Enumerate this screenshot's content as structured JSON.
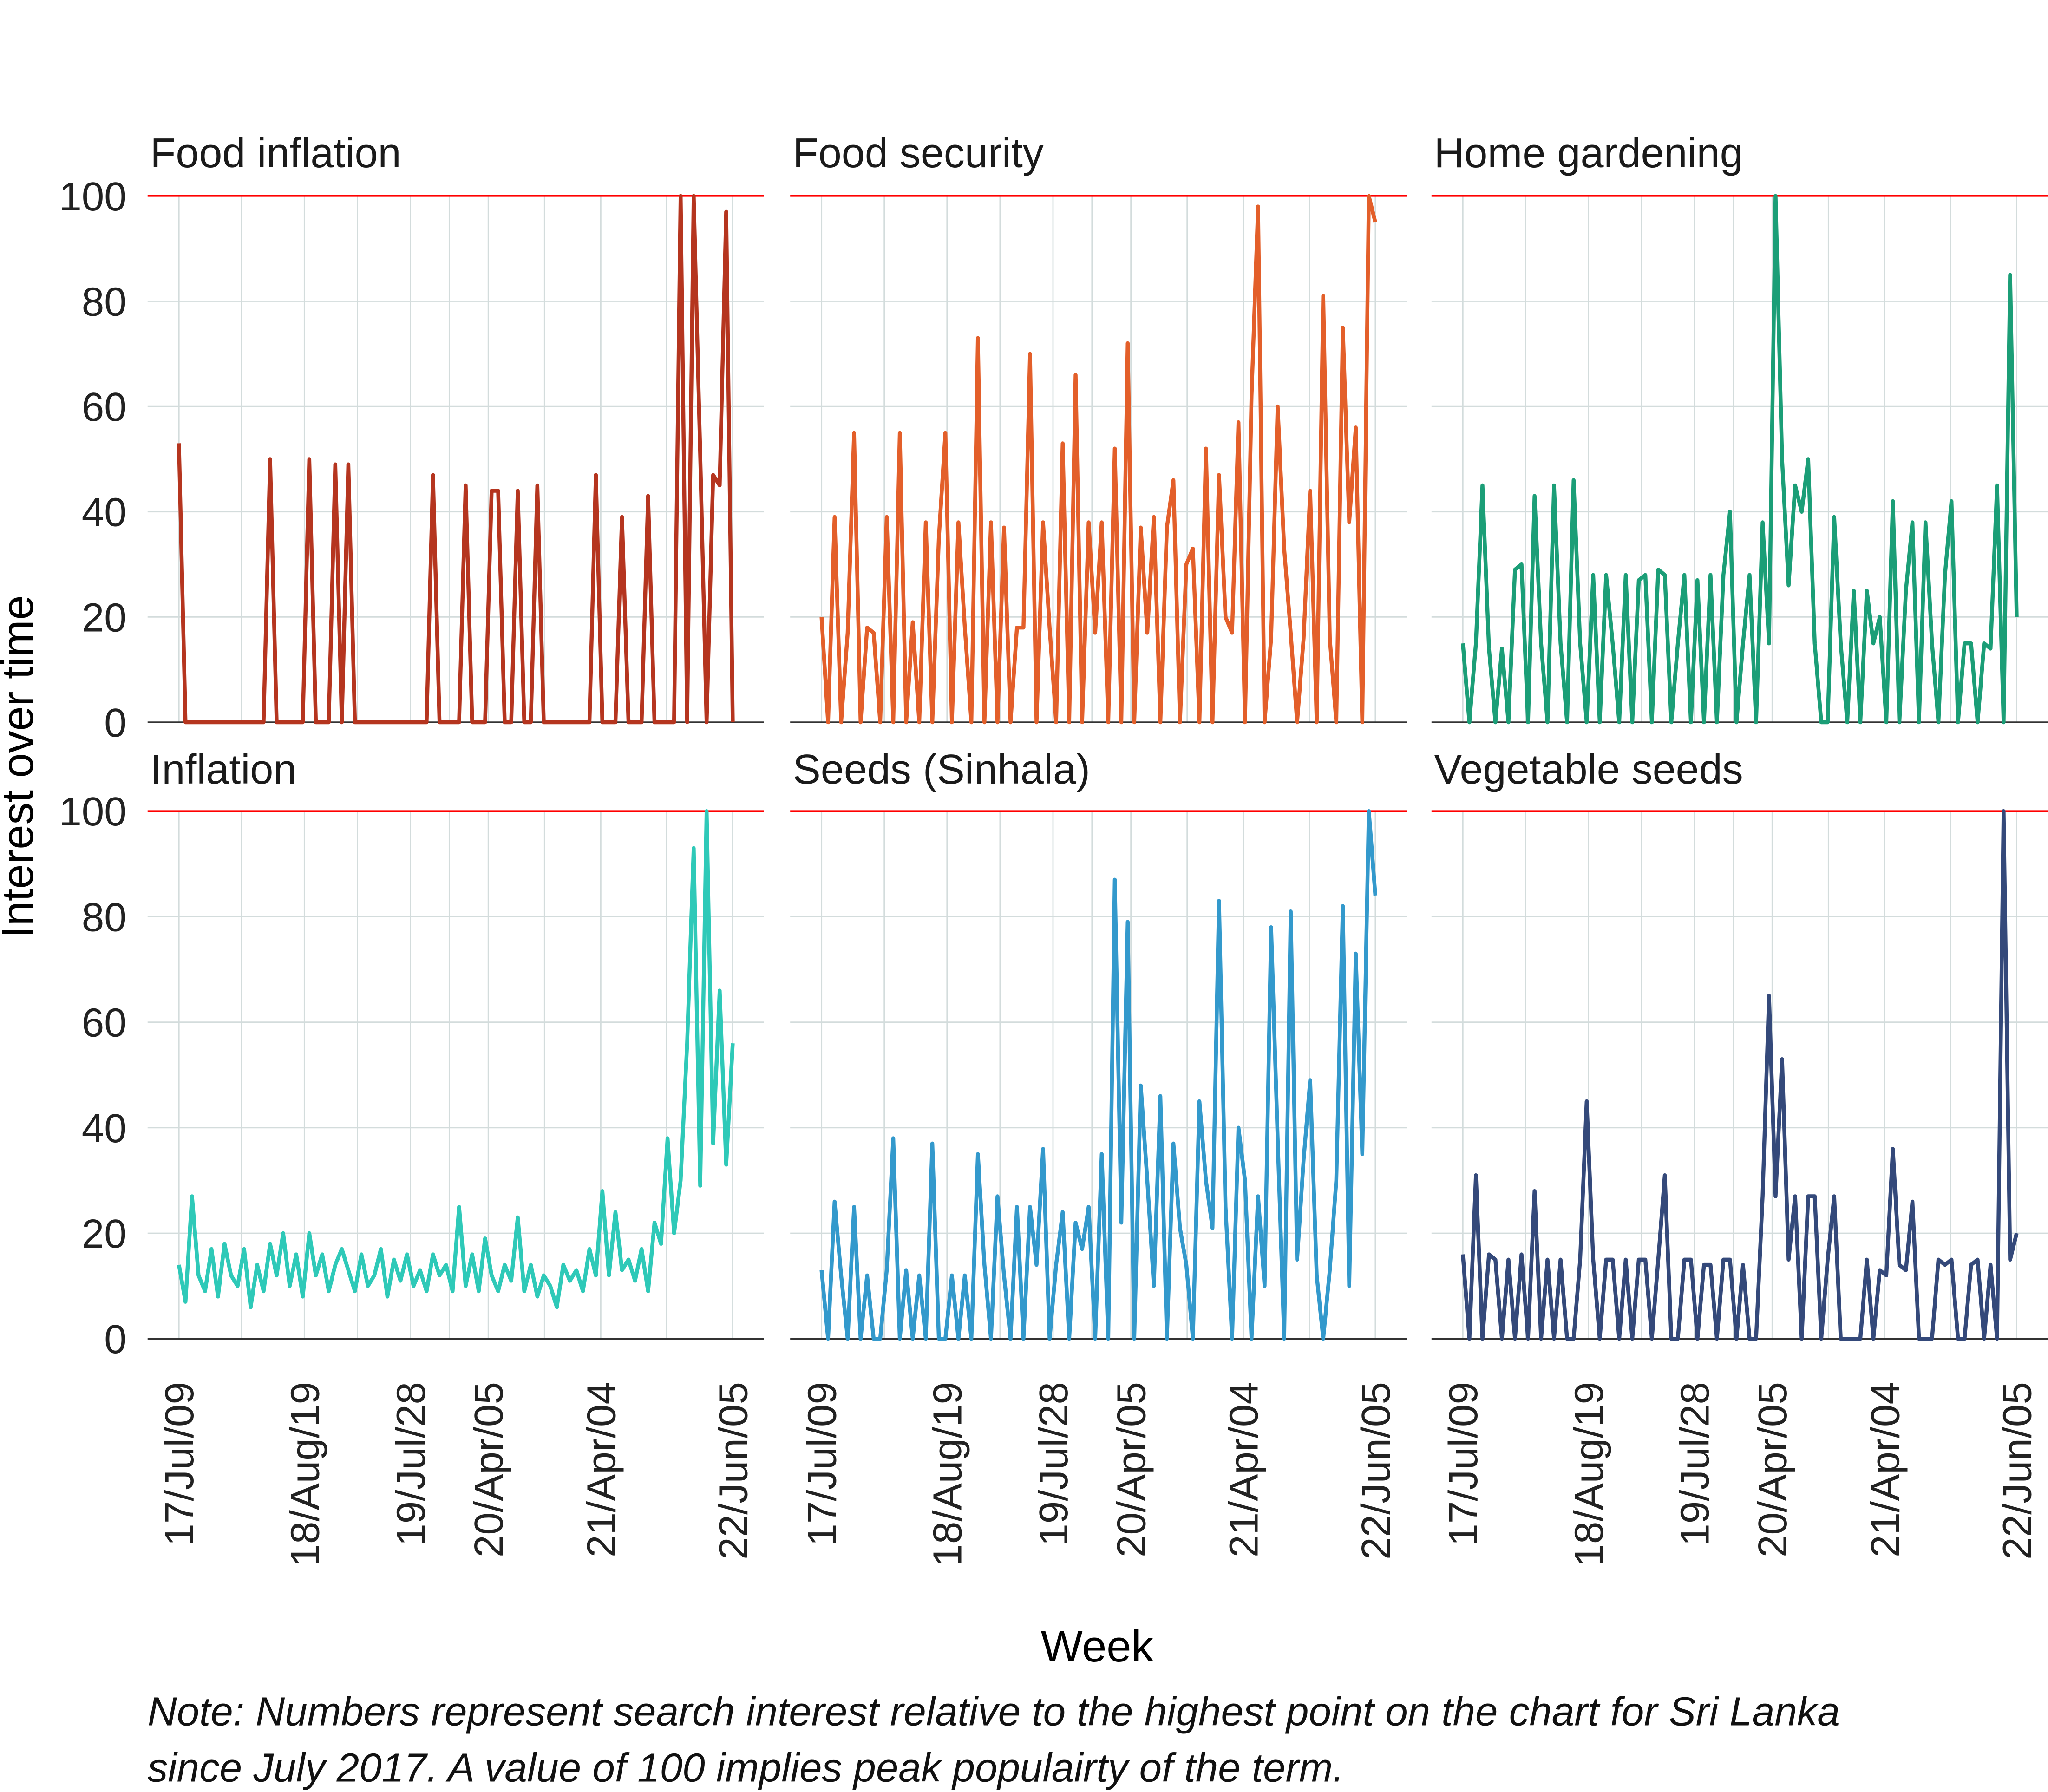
{
  "chart_data": {
    "type": "line",
    "layout": "facet 2x3",
    "xlabel": "Week",
    "ylabel": "Interest over time",
    "ylim": [
      0,
      100
    ],
    "y_ticks": [
      0,
      20,
      40,
      60,
      80,
      100
    ],
    "x_range": [
      "2017-07-09",
      "2022-06-05"
    ],
    "x_ticks": [
      {
        "date": "2017-07-09",
        "label": "17/Jul/09"
      },
      {
        "date": "2018-08-19",
        "label": "18/Aug/19"
      },
      {
        "date": "2019-07-28",
        "label": "19/Jul/28"
      },
      {
        "date": "2020-04-05",
        "label": "20/Apr/05"
      },
      {
        "date": "2021-04-04",
        "label": "21/Apr/04"
      },
      {
        "date": "2022-06-05",
        "label": "22/Jun/05"
      }
    ],
    "grid": true,
    "reference_line": {
      "value": 100,
      "color": "#FF0000"
    },
    "note": [
      "Note: Numbers represent search interest relative to the highest point on the chart for Sri Lanka",
      "since July 2017. A value of 100 implies peak populairty of the term."
    ],
    "series": [
      {
        "name": "Food inflation",
        "color": "#B5351F",
        "values": [
          53,
          0,
          0,
          0,
          0,
          0,
          0,
          0,
          0,
          0,
          0,
          0,
          0,
          0,
          50,
          0,
          0,
          0,
          0,
          0,
          50,
          0,
          0,
          0,
          49,
          0,
          49,
          0,
          0,
          0,
          0,
          0,
          0,
          0,
          0,
          0,
          0,
          0,
          0,
          47,
          0,
          0,
          0,
          0,
          45,
          0,
          0,
          0,
          44,
          44,
          0,
          0,
          44,
          0,
          0,
          45,
          0,
          0,
          0,
          0,
          0,
          0,
          0,
          0,
          47,
          0,
          0,
          0,
          39,
          0,
          0,
          0,
          43,
          0,
          0,
          0,
          0,
          100,
          0,
          100,
          51,
          0,
          47,
          45,
          97,
          0
        ]
      },
      {
        "name": "Food security",
        "color": "#E35F2A",
        "values": [
          20,
          0,
          39,
          0,
          17,
          55,
          0,
          18,
          17,
          0,
          39,
          0,
          55,
          0,
          19,
          0,
          38,
          0,
          35,
          55,
          0,
          38,
          18,
          0,
          73,
          0,
          38,
          0,
          37,
          0,
          18,
          18,
          70,
          0,
          38,
          18,
          0,
          53,
          0,
          66,
          0,
          38,
          17,
          38,
          0,
          52,
          0,
          72,
          0,
          37,
          17,
          39,
          0,
          37,
          46,
          0,
          30,
          33,
          0,
          52,
          0,
          47,
          20,
          17,
          57,
          0,
          62,
          98,
          0,
          16,
          60,
          33,
          17,
          0,
          16,
          44,
          0,
          81,
          16,
          0,
          75,
          38,
          56,
          0,
          100,
          95
        ]
      },
      {
        "name": "Home gardening",
        "color": "#1B9E77",
        "values": [
          15,
          0,
          15,
          45,
          14,
          0,
          14,
          0,
          29,
          30,
          0,
          43,
          15,
          0,
          45,
          15,
          0,
          46,
          15,
          0,
          28,
          0,
          28,
          15,
          0,
          28,
          0,
          27,
          28,
          0,
          29,
          28,
          0,
          15,
          28,
          0,
          27,
          0,
          28,
          0,
          28,
          40,
          0,
          15,
          28,
          0,
          38,
          15,
          100,
          50,
          26,
          45,
          40,
          50,
          15,
          0,
          0,
          39,
          15,
          0,
          25,
          0,
          25,
          15,
          20,
          0,
          42,
          0,
          25,
          38,
          0,
          38,
          15,
          0,
          28,
          42,
          0,
          15,
          15,
          0,
          15,
          14,
          45,
          0,
          85,
          20
        ]
      },
      {
        "name": "Inflation",
        "color": "#2EC9B8",
        "values": [
          14,
          7,
          27,
          12,
          9,
          17,
          8,
          18,
          12,
          10,
          17,
          6,
          14,
          9,
          18,
          12,
          20,
          10,
          16,
          8,
          20,
          12,
          16,
          9,
          14,
          17,
          13,
          9,
          16,
          10,
          12,
          17,
          8,
          15,
          11,
          16,
          10,
          13,
          9,
          16,
          12,
          14,
          9,
          25,
          10,
          16,
          9,
          19,
          12,
          9,
          14,
          11,
          23,
          9,
          14,
          8,
          12,
          10,
          6,
          14,
          11,
          13,
          9,
          17,
          12,
          28,
          12,
          24,
          13,
          15,
          11,
          17,
          9,
          22,
          18,
          38,
          20,
          30,
          56,
          93,
          29,
          100,
          37,
          66,
          33,
          56
        ]
      },
      {
        "name": "Seeds (Sinhala)",
        "color": "#3399CC",
        "values": [
          13,
          0,
          26,
          12,
          0,
          25,
          0,
          12,
          0,
          0,
          13,
          38,
          0,
          13,
          0,
          12,
          0,
          37,
          0,
          0,
          12,
          0,
          12,
          0,
          35,
          14,
          0,
          27,
          12,
          0,
          25,
          0,
          25,
          14,
          36,
          0,
          14,
          24,
          0,
          22,
          17,
          25,
          0,
          35,
          0,
          87,
          22,
          79,
          0,
          48,
          30,
          10,
          46,
          0,
          37,
          21,
          14,
          0,
          45,
          30,
          21,
          83,
          25,
          0,
          40,
          30,
          0,
          27,
          10,
          78,
          38,
          0,
          81,
          15,
          34,
          49,
          12,
          0,
          13,
          30,
          82,
          10,
          73,
          35,
          100,
          84
        ]
      },
      {
        "name": "Vegetable seeds",
        "color": "#34497A",
        "values": [
          16,
          0,
          31,
          0,
          16,
          15,
          0,
          15,
          0,
          16,
          0,
          28,
          0,
          15,
          0,
          15,
          0,
          0,
          15,
          45,
          15,
          0,
          15,
          15,
          0,
          15,
          0,
          15,
          15,
          0,
          15,
          31,
          0,
          0,
          15,
          15,
          0,
          14,
          14,
          0,
          15,
          15,
          0,
          14,
          0,
          0,
          27,
          65,
          27,
          53,
          15,
          27,
          0,
          27,
          27,
          0,
          15,
          27,
          0,
          0,
          0,
          0,
          15,
          0,
          13,
          12,
          36,
          14,
          13,
          26,
          0,
          0,
          0,
          15,
          14,
          15,
          0,
          0,
          14,
          15,
          0,
          14,
          0,
          100,
          15,
          20
        ]
      }
    ]
  }
}
